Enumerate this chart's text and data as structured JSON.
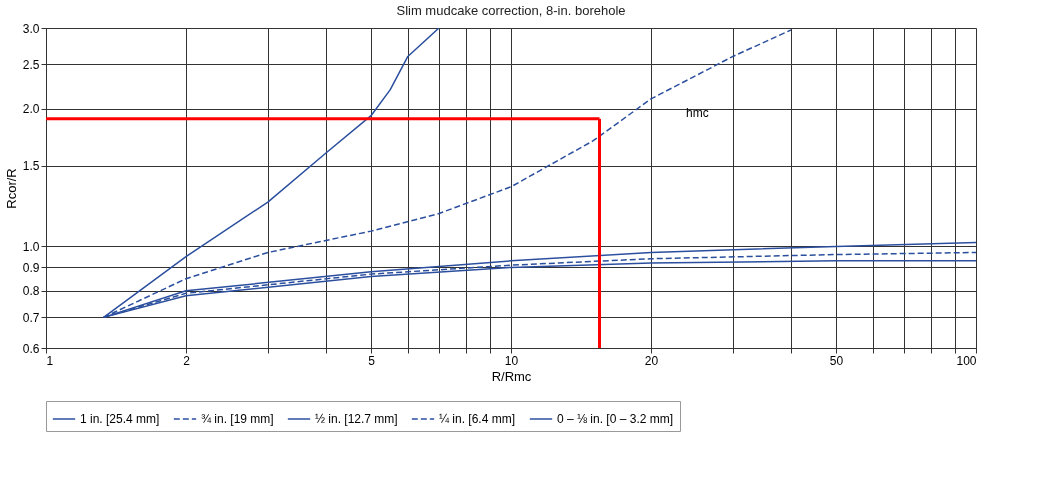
{
  "chart_data": {
    "type": "line",
    "subtitle": "Slim mudcake correction, 8-in. borehole",
    "xlabel": "R/Rmc",
    "ylabel": "Rcor/R",
    "log": "xy",
    "grid": true,
    "legend": "bottom",
    "xlim": [
      1,
      100
    ],
    "ylim": [
      0.6,
      3.0
    ],
    "xticks": [
      1,
      2,
      {
        "value": 3,
        "label": null
      },
      {
        "value": 4,
        "label": null
      },
      5,
      {
        "value": 6,
        "label": null
      },
      {
        "value": 7,
        "label": null
      },
      {
        "value": 8,
        "label": null
      },
      {
        "value": 9,
        "label": null
      },
      10,
      20,
      {
        "value": 30,
        "label": null
      },
      {
        "value": 40,
        "label": null
      },
      50,
      {
        "value": 60,
        "label": null
      },
      {
        "value": 70,
        "label": null
      },
      {
        "value": 80,
        "label": null
      },
      {
        "value": 90,
        "label": null
      },
      100
    ],
    "yticks": [
      0.6,
      0.7,
      0.8,
      0.9,
      {
        "value": 1,
        "label": "1.0"
      },
      1.5,
      {
        "value": 2,
        "label": "2.0"
      },
      2.5,
      {
        "value": 3,
        "label": "3.0"
      }
    ],
    "annotations": [
      "hmc"
    ],
    "series": [
      {
        "name": "1 in. [25.4 mm]",
        "color": "#2b4f9e",
        "line_style": "solid",
        "x": [
          1.33,
          2,
          3,
          4,
          5,
          5.5,
          6,
          7
        ],
        "values": [
          0.7,
          0.95,
          1.25,
          1.6,
          1.93,
          2.2,
          2.6,
          3.0
        ]
      },
      {
        "name": "¾ in. [19 mm]",
        "color": "#2b4f9e",
        "line_style": "dashed",
        "x": [
          1.33,
          2,
          3,
          5,
          7,
          10,
          15,
          20,
          30,
          40
        ],
        "values": [
          0.7,
          0.85,
          0.97,
          1.08,
          1.18,
          1.35,
          1.7,
          2.1,
          2.6,
          2.97
        ]
      },
      {
        "name": "½ in. [12.7 mm]",
        "color": "#2b4f9e",
        "line_style": "solid",
        "x": [
          1.33,
          2,
          5,
          10,
          20,
          50,
          100
        ],
        "values": [
          0.7,
          0.8,
          0.88,
          0.93,
          0.97,
          1.0,
          1.02
        ]
      },
      {
        "name": "¼ in. [6.4 mm]",
        "color": "#2b4f9e",
        "line_style": "dashed",
        "x": [
          1.33,
          2,
          5,
          10,
          20,
          50,
          100
        ],
        "values": [
          0.7,
          0.79,
          0.87,
          0.91,
          0.94,
          0.96,
          0.97
        ]
      },
      {
        "name": "0 – ⅛ in. [0 – 3.2 mm]",
        "color": "#2b4f9e",
        "line_style": "solid",
        "x": [
          1.33,
          2,
          5,
          10,
          20,
          50,
          100
        ],
        "values": [
          0.7,
          0.78,
          0.86,
          0.9,
          0.92,
          0.93,
          0.93
        ]
      },
      {
        "color": "#ff0000",
        "line_style": "solid",
        "x": [
          1,
          15.5
        ],
        "values": [
          1.9,
          1.9
        ]
      },
      {
        "color": "#ff0000",
        "line_style": "solid",
        "x": [
          15.5,
          15.5
        ],
        "values": [
          0.6,
          1.9
        ]
      }
    ]
  }
}
